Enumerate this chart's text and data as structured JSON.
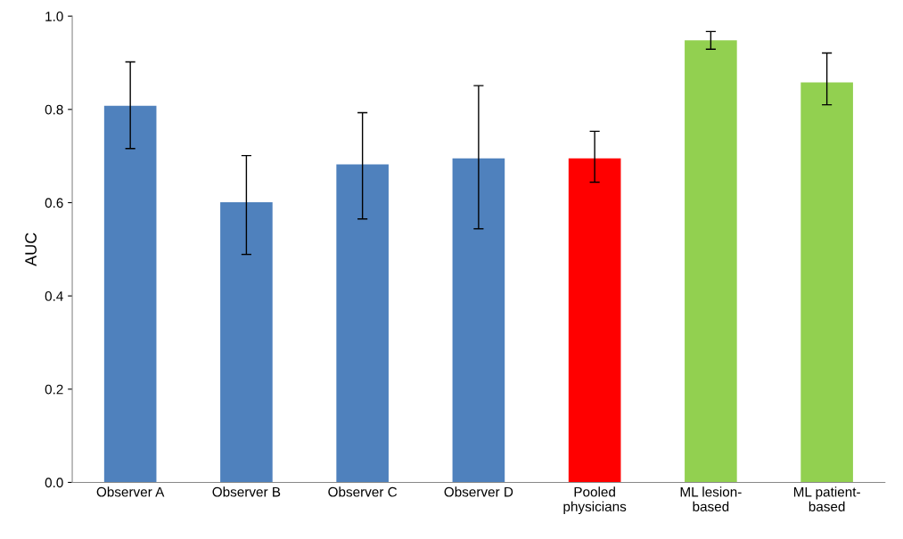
{
  "chart_data": {
    "type": "bar",
    "ylabel": "AUC",
    "categories": [
      "Observer A",
      "Observer B",
      "Observer C",
      "Observer D",
      "Pooled\nphysicians",
      "ML lesion-\nbased",
      "ML patient-\nbased"
    ],
    "values": [
      0.808,
      0.601,
      0.682,
      0.695,
      0.695,
      0.948,
      0.858
    ],
    "colors": [
      "#4f81bd",
      "#4f81bd",
      "#4f81bd",
      "#4f81bd",
      "#ff0000",
      "#92d050",
      "#92d050"
    ],
    "errors": [
      [
        0.716,
        0.902
      ],
      [
        0.489,
        0.701
      ],
      [
        0.565,
        0.793
      ],
      [
        0.544,
        0.851
      ],
      [
        0.644,
        0.753
      ],
      [
        0.929,
        0.967
      ],
      [
        0.81,
        0.921
      ]
    ],
    "ylim": [
      0,
      1
    ],
    "yticks": [
      {
        "value": 0,
        "label": "0.0"
      },
      {
        "value": 0.2,
        "label": "0.2"
      },
      {
        "value": 0.4,
        "label": "0.4"
      },
      {
        "value": 0.6,
        "label": "0.6"
      },
      {
        "value": 0.8,
        "label": "0.8"
      },
      {
        "value": 1,
        "label": "1.0"
      }
    ],
    "grid": false,
    "legend": false
  }
}
